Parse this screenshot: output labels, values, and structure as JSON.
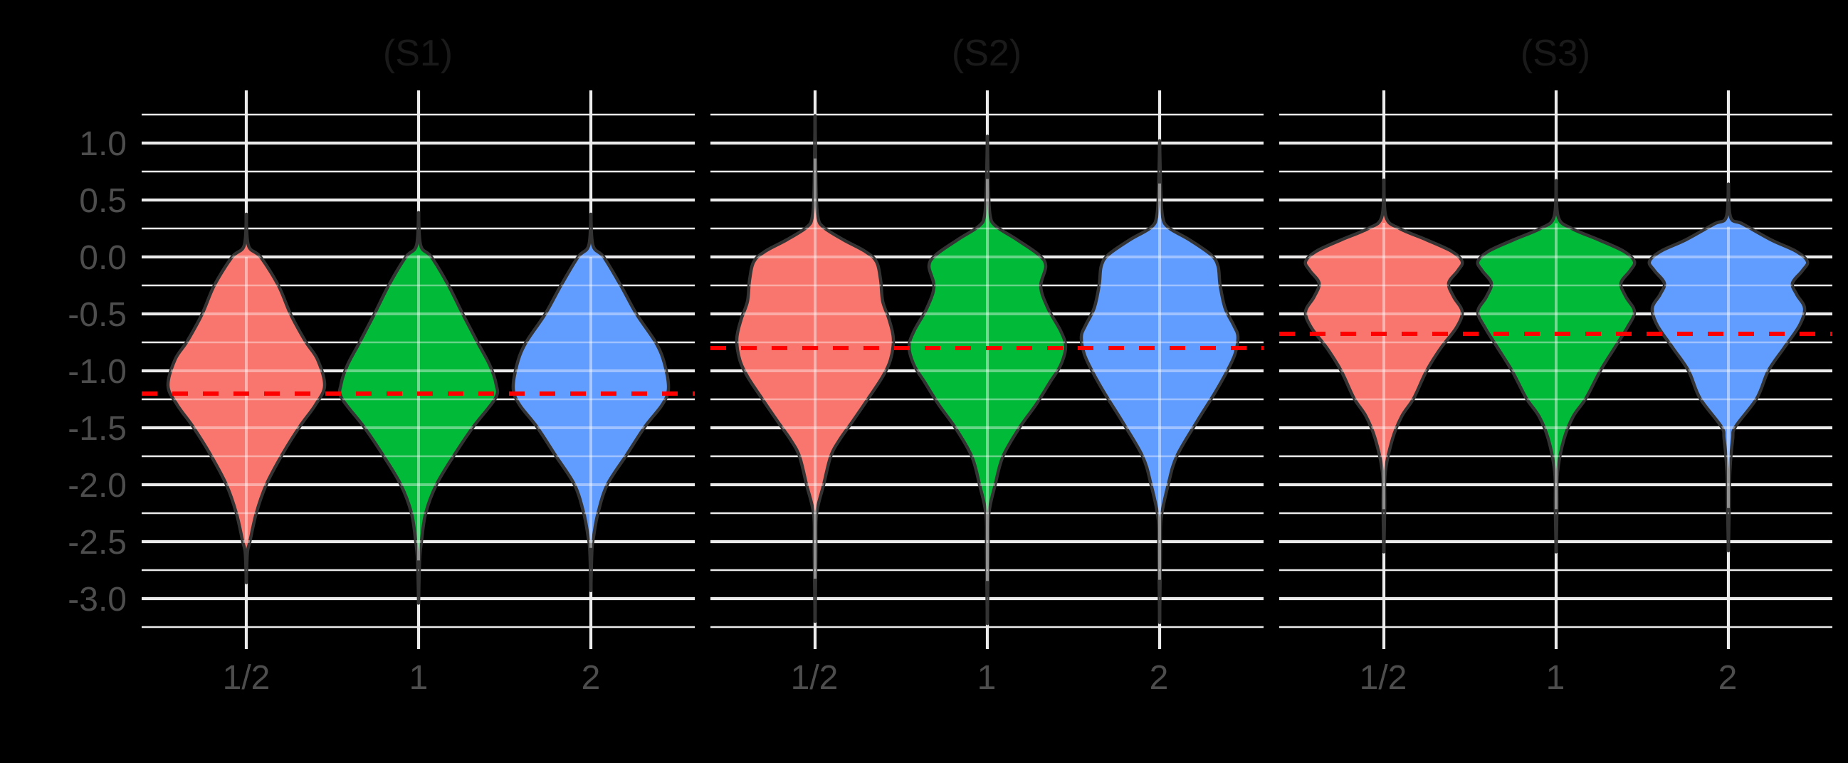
{
  "chart_data": {
    "type": "violin",
    "title": "",
    "xlabel": "",
    "ylabel": "",
    "categories": [
      "1/2",
      "1",
      "2"
    ],
    "colors": {
      "1/2": "#F8766D",
      "1": "#00BA38",
      "2": "#619CFF"
    },
    "ylim": [
      -3.25,
      1.25
    ],
    "y_ticks": [
      1.0,
      0.5,
      0.0,
      -0.5,
      -1.0,
      -1.5,
      -2.0,
      -2.5,
      -3.0
    ],
    "y_tick_labels": [
      "1.0",
      "0.5",
      "0.0",
      "-0.5",
      "-1.0",
      "-1.5",
      "-2.0",
      "-2.5",
      "-3.0"
    ],
    "grid": true,
    "legend": "none",
    "reference_line_style": "red dashed horizontal",
    "panels": [
      {
        "title": "(S1)",
        "reference_line": -1.2,
        "violins": [
          {
            "category": "1/2",
            "max": 0.375,
            "min": -2.86,
            "profile": [
              [
                0.375,
                0
              ],
              [
                0.1,
                3
              ],
              [
                0.0,
                20
              ],
              [
                -0.25,
                45
              ],
              [
                -0.5,
                62
              ],
              [
                -0.74,
                83
              ],
              [
                -0.9,
                100
              ],
              [
                -1.13,
                110
              ],
              [
                -1.3,
                97
              ],
              [
                -1.49,
                75
              ],
              [
                -1.74,
                50
              ],
              [
                -2.0,
                28
              ],
              [
                -2.25,
                14
              ],
              [
                -2.5,
                5
              ],
              [
                -2.6,
                1.5
              ],
              [
                -2.86,
                0
              ]
            ]
          },
          {
            "category": "1",
            "max": 0.39,
            "min": -3.04,
            "profile": [
              [
                0.39,
                0
              ],
              [
                0.1,
                3
              ],
              [
                0.0,
                18
              ],
              [
                -0.25,
                42
              ],
              [
                -0.5,
                62
              ],
              [
                -0.74,
                82
              ],
              [
                -0.95,
                100
              ],
              [
                -1.12,
                109
              ],
              [
                -1.24,
                108
              ],
              [
                -1.49,
                77
              ],
              [
                -1.74,
                50
              ],
              [
                -2.0,
                25
              ],
              [
                -2.25,
                10
              ],
              [
                -2.5,
                4
              ],
              [
                -2.66,
                1.5
              ],
              [
                -3.04,
                0
              ]
            ]
          },
          {
            "category": "2",
            "max": 0.375,
            "min": -2.93,
            "profile": [
              [
                0.375,
                0
              ],
              [
                0.1,
                3
              ],
              [
                0.0,
                18
              ],
              [
                -0.25,
                42
              ],
              [
                -0.5,
                64
              ],
              [
                -0.76,
                92
              ],
              [
                -0.95,
                104
              ],
              [
                -1.16,
                109
              ],
              [
                -1.3,
                100
              ],
              [
                -1.49,
                76
              ],
              [
                -1.74,
                50
              ],
              [
                -2.0,
                23
              ],
              [
                -2.25,
                10
              ],
              [
                -2.45,
                4
              ],
              [
                -2.58,
                1.5
              ],
              [
                -2.93,
                0
              ]
            ]
          }
        ]
      },
      {
        "title": "(S2)",
        "reference_line": -0.8,
        "violins": [
          {
            "category": "1/2",
            "max": 1.24,
            "min": -3.2,
            "profile": [
              [
                1.24,
                0
              ],
              [
                0.6,
                1.5
              ],
              [
                0.35,
                4
              ],
              [
                0.26,
                12
              ],
              [
                0.15,
                40
              ],
              [
                0.05,
                70
              ],
              [
                -0.04,
                86
              ],
              [
                -0.2,
                92
              ],
              [
                -0.39,
                95
              ],
              [
                -0.55,
                104
              ],
              [
                -0.72,
                110
              ],
              [
                -0.9,
                106
              ],
              [
                -1.05,
                95
              ],
              [
                -1.24,
                75
              ],
              [
                -1.45,
                52
              ],
              [
                -1.6,
                35
              ],
              [
                -1.75,
                22
              ],
              [
                -2.0,
                12
              ],
              [
                -2.26,
                2
              ],
              [
                -2.6,
                1.2
              ],
              [
                -3.2,
                0
              ]
            ]
          },
          {
            "category": "1",
            "max": 1.06,
            "min": -3.22,
            "profile": [
              [
                1.06,
                0
              ],
              [
                0.6,
                1.5
              ],
              [
                0.36,
                4
              ],
              [
                0.27,
                12
              ],
              [
                0.15,
                42
              ],
              [
                0.02,
                72
              ],
              [
                -0.08,
                82
              ],
              [
                -0.26,
                75
              ],
              [
                -0.45,
                85
              ],
              [
                -0.65,
                103
              ],
              [
                -0.79,
                110
              ],
              [
                -0.95,
                103
              ],
              [
                -1.1,
                88
              ],
              [
                -1.3,
                68
              ],
              [
                -1.5,
                45
              ],
              [
                -1.75,
                22
              ],
              [
                -2.0,
                11
              ],
              [
                -2.26,
                2
              ],
              [
                -2.6,
                1.2
              ],
              [
                -3.22,
                0
              ]
            ]
          },
          {
            "category": "2",
            "max": 1.02,
            "min": -3.21,
            "profile": [
              [
                1.02,
                0
              ],
              [
                0.6,
                1.5
              ],
              [
                0.36,
                4
              ],
              [
                0.26,
                12
              ],
              [
                0.15,
                42
              ],
              [
                0.02,
                72
              ],
              [
                -0.08,
                82
              ],
              [
                -0.25,
                85
              ],
              [
                -0.45,
                92
              ],
              [
                -0.6,
                104
              ],
              [
                -0.7,
                110
              ],
              [
                -0.85,
                106
              ],
              [
                -1.0,
                95
              ],
              [
                -1.2,
                77
              ],
              [
                -1.45,
                52
              ],
              [
                -1.75,
                24
              ],
              [
                -2.0,
                12
              ],
              [
                -2.3,
                2
              ],
              [
                -2.6,
                1.2
              ],
              [
                -3.21,
                0
              ]
            ]
          }
        ]
      },
      {
        "title": "(S3)",
        "reference_line": -0.675,
        "violins": [
          {
            "category": "1/2",
            "max": 0.675,
            "min": -2.59,
            "profile": [
              [
                0.675,
                0
              ],
              [
                0.35,
                3
              ],
              [
                0.25,
                22
              ],
              [
                0.15,
                60
              ],
              [
                0.05,
                95
              ],
              [
                -0.04,
                110
              ],
              [
                -0.12,
                104
              ],
              [
                -0.23,
                91
              ],
              [
                -0.35,
                98
              ],
              [
                -0.48,
                110
              ],
              [
                -0.62,
                102
              ],
              [
                -0.8,
                80
              ],
              [
                -1.0,
                60
              ],
              [
                -1.24,
                42
              ],
              [
                -1.4,
                25
              ],
              [
                -1.6,
                12
              ],
              [
                -1.89,
                2
              ],
              [
                -2.2,
                1.2
              ],
              [
                -2.59,
                0
              ]
            ]
          },
          {
            "category": "1",
            "max": 0.67,
            "min": -2.59,
            "profile": [
              [
                0.67,
                0
              ],
              [
                0.35,
                3
              ],
              [
                0.25,
                22
              ],
              [
                0.15,
                60
              ],
              [
                0.05,
                95
              ],
              [
                -0.04,
                110
              ],
              [
                -0.12,
                104
              ],
              [
                -0.23,
                91
              ],
              [
                -0.35,
                98
              ],
              [
                -0.48,
                110
              ],
              [
                -0.62,
                100
              ],
              [
                -0.8,
                82
              ],
              [
                -1.0,
                62
              ],
              [
                -1.24,
                42
              ],
              [
                -1.4,
                24
              ],
              [
                -1.6,
                11
              ],
              [
                -1.89,
                2
              ],
              [
                -2.2,
                1.2
              ],
              [
                -2.59,
                0
              ]
            ]
          },
          {
            "category": "2",
            "max": 0.64,
            "min": -2.58,
            "profile": [
              [
                0.64,
                0
              ],
              [
                0.35,
                3
              ],
              [
                0.29,
                20
              ],
              [
                0.15,
                60
              ],
              [
                0.05,
                95
              ],
              [
                -0.04,
                111
              ],
              [
                -0.12,
                104
              ],
              [
                -0.23,
                90
              ],
              [
                -0.33,
                96
              ],
              [
                -0.45,
                107
              ],
              [
                -0.6,
                100
              ],
              [
                -0.8,
                78
              ],
              [
                -1.0,
                56
              ],
              [
                -1.24,
                40
              ],
              [
                -1.49,
                10
              ],
              [
                -1.6,
                6
              ],
              [
                -1.89,
                2
              ],
              [
                -2.2,
                1.2
              ],
              [
                -2.58,
                0
              ]
            ]
          }
        ]
      }
    ]
  }
}
